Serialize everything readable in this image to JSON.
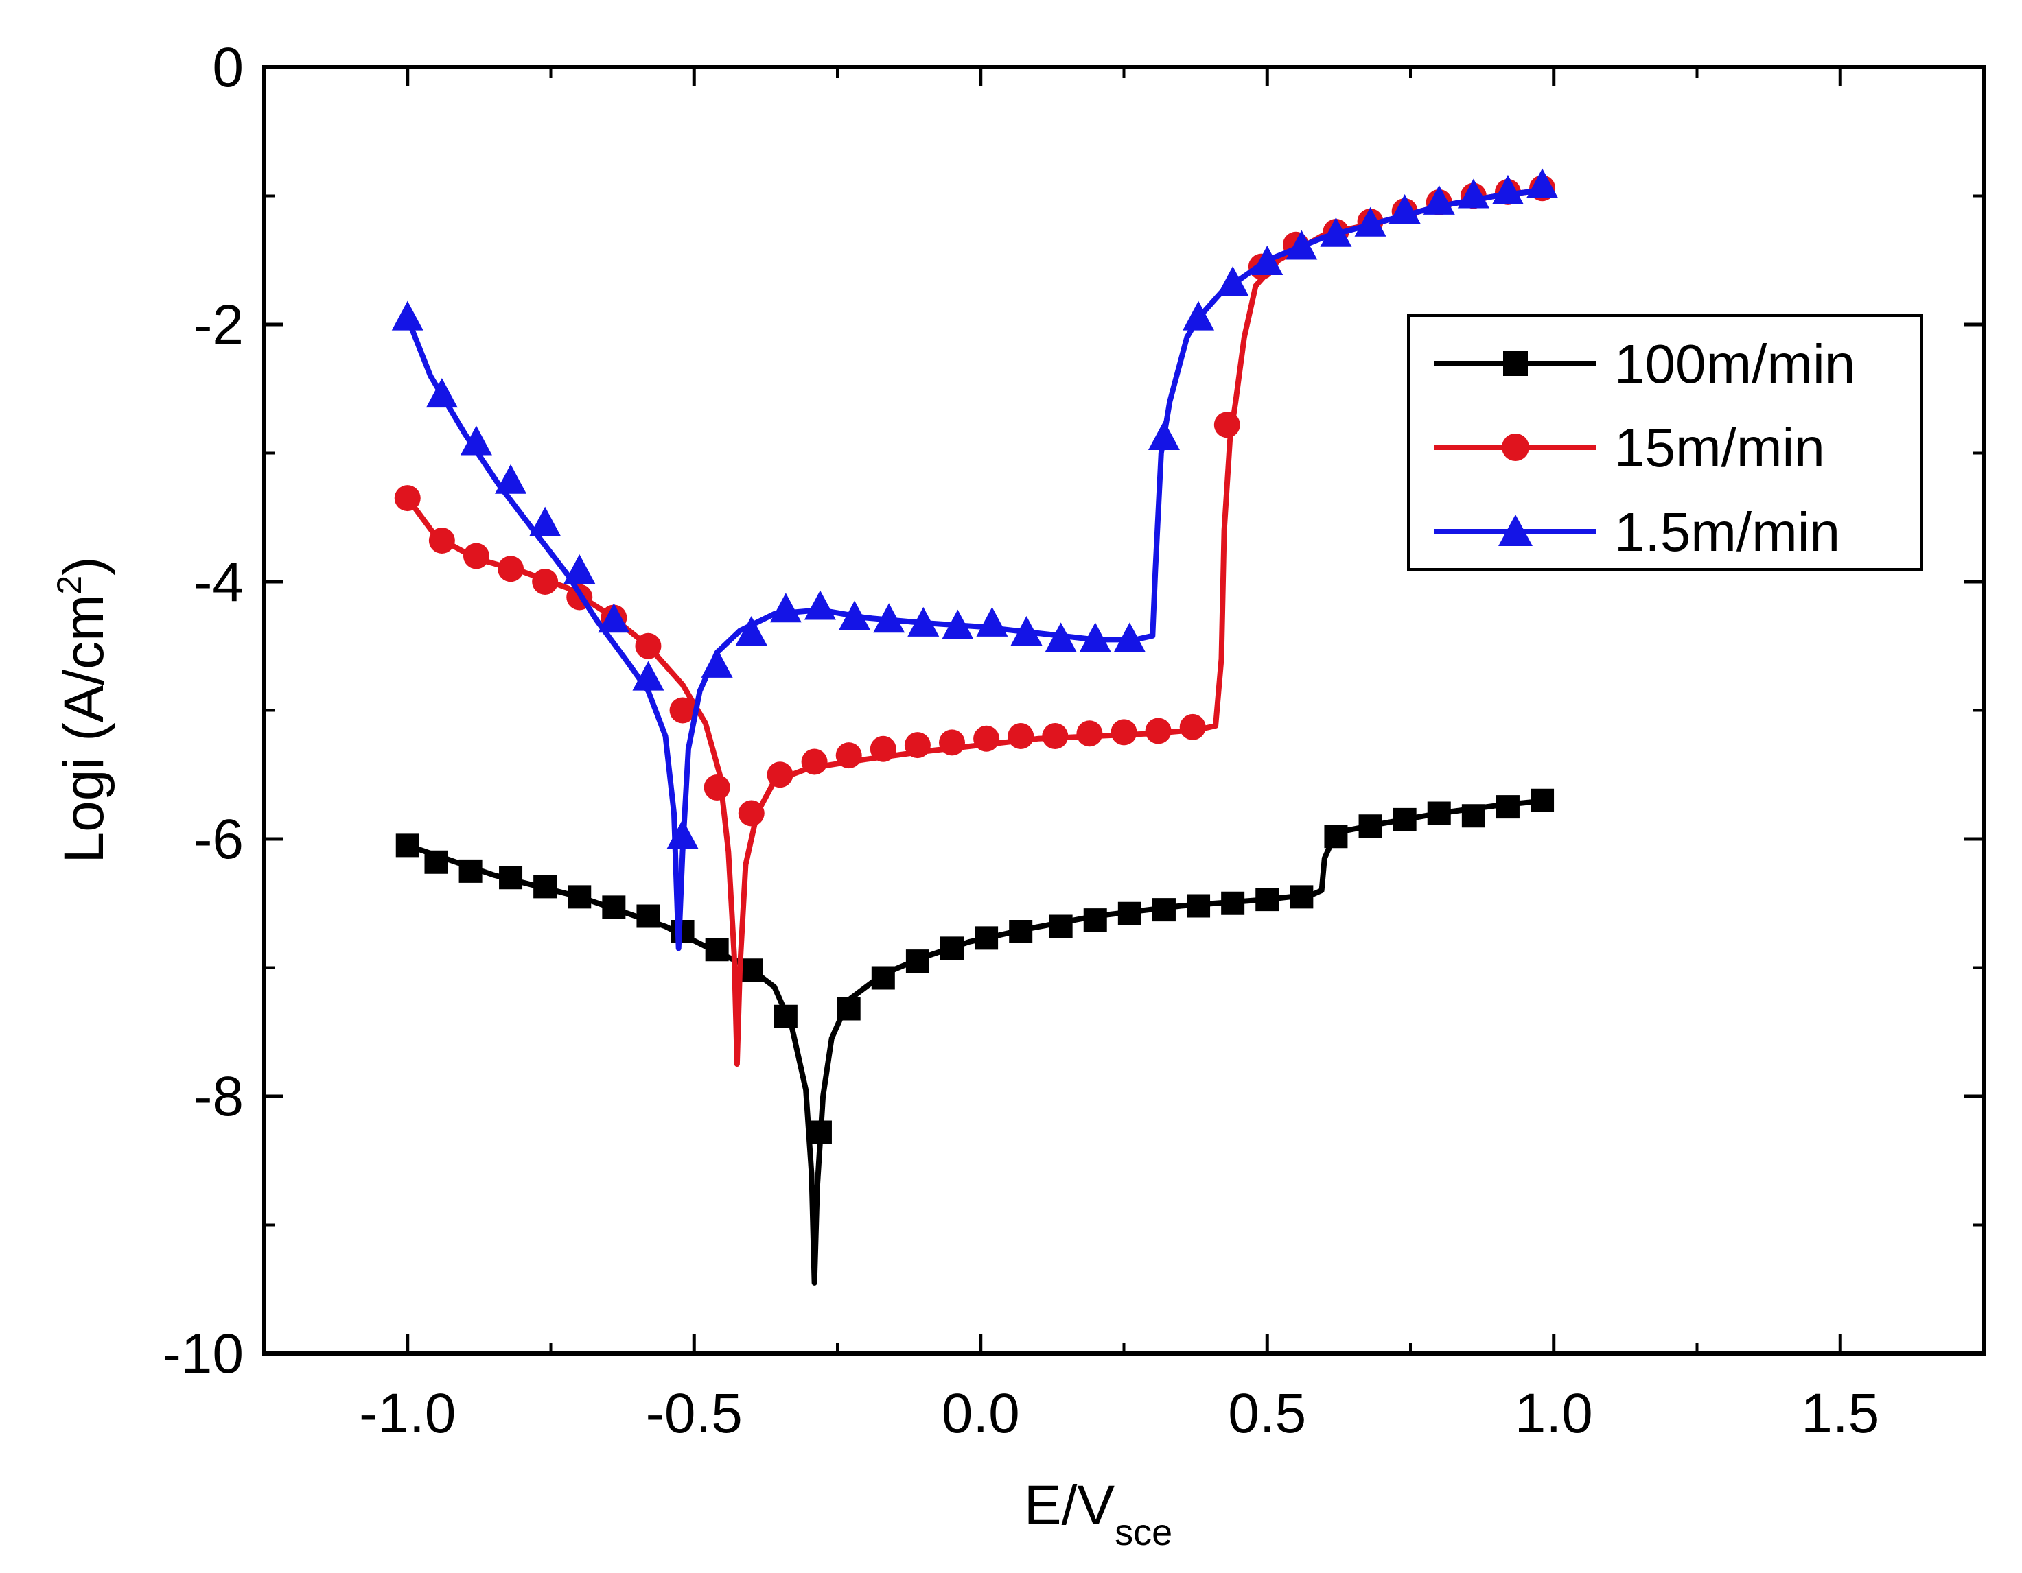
{
  "chart_data": {
    "type": "line",
    "xlabel_main": "E/V",
    "xlabel_sub": "sce",
    "ylabel_main": "Logi (A/cm",
    "ylabel_sup": "2",
    "ylabel_end": ")",
    "xlim": [
      -1.25,
      1.75
    ],
    "ylim": [
      -10,
      0
    ],
    "x_ticks": [
      -1.0,
      -0.5,
      0.0,
      0.5,
      1.0,
      1.5
    ],
    "x_tick_labels": [
      "-1.0",
      "-0.5",
      "0.0",
      "0.5",
      "1.0",
      "1.5"
    ],
    "y_ticks": [
      0,
      -2,
      -4,
      -6,
      -8,
      -10
    ],
    "y_tick_labels": [
      "0",
      "-2",
      "-4",
      "-6",
      "-8",
      "-10"
    ],
    "legend_position": "top-right",
    "series": [
      {
        "name": "100m/min",
        "color": "#000000",
        "marker": "square",
        "line": [
          [
            -1.0,
            -6.05
          ],
          [
            -0.85,
            -6.28
          ],
          [
            -0.7,
            -6.45
          ],
          [
            -0.55,
            -6.68
          ],
          [
            -0.46,
            -6.88
          ],
          [
            -0.41,
            -6.98
          ],
          [
            -0.36,
            -7.15
          ],
          [
            -0.33,
            -7.45
          ],
          [
            -0.305,
            -7.95
          ],
          [
            -0.295,
            -8.6
          ],
          [
            -0.29,
            -9.45
          ],
          [
            -0.285,
            -8.7
          ],
          [
            -0.275,
            -8.0
          ],
          [
            -0.26,
            -7.55
          ],
          [
            -0.23,
            -7.25
          ],
          [
            -0.17,
            -7.05
          ],
          [
            -0.1,
            -6.92
          ],
          [
            -0.02,
            -6.8
          ],
          [
            0.08,
            -6.7
          ],
          [
            0.2,
            -6.6
          ],
          [
            0.35,
            -6.52
          ],
          [
            0.5,
            -6.47
          ],
          [
            0.58,
            -6.43
          ],
          [
            0.595,
            -6.4
          ],
          [
            0.6,
            -6.15
          ],
          [
            0.62,
            -5.95
          ],
          [
            0.7,
            -5.88
          ],
          [
            0.8,
            -5.8
          ],
          [
            0.9,
            -5.74
          ],
          [
            0.99,
            -5.7
          ]
        ],
        "markers": [
          [
            -1.0,
            -6.05
          ],
          [
            -0.95,
            -6.18
          ],
          [
            -0.89,
            -6.25
          ],
          [
            -0.82,
            -6.3
          ],
          [
            -0.76,
            -6.37
          ],
          [
            -0.7,
            -6.45
          ],
          [
            -0.64,
            -6.53
          ],
          [
            -0.58,
            -6.6
          ],
          [
            -0.52,
            -6.72
          ],
          [
            -0.46,
            -6.86
          ],
          [
            -0.4,
            -7.02
          ],
          [
            -0.34,
            -7.38
          ],
          [
            -0.28,
            -8.28
          ],
          [
            -0.23,
            -7.32
          ],
          [
            -0.17,
            -7.08
          ],
          [
            -0.11,
            -6.95
          ],
          [
            -0.05,
            -6.85
          ],
          [
            0.01,
            -6.77
          ],
          [
            0.07,
            -6.72
          ],
          [
            0.14,
            -6.68
          ],
          [
            0.2,
            -6.63
          ],
          [
            0.26,
            -6.58
          ],
          [
            0.32,
            -6.55
          ],
          [
            0.38,
            -6.52
          ],
          [
            0.44,
            -6.5
          ],
          [
            0.5,
            -6.47
          ],
          [
            0.56,
            -6.45
          ],
          [
            0.62,
            -5.98
          ],
          [
            0.68,
            -5.9
          ],
          [
            0.74,
            -5.85
          ],
          [
            0.8,
            -5.8
          ],
          [
            0.86,
            -5.82
          ],
          [
            0.92,
            -5.75
          ],
          [
            0.98,
            -5.7
          ]
        ]
      },
      {
        "name": "15m/min",
        "color": "#e0141e",
        "marker": "circle",
        "line": [
          [
            -1.0,
            -3.35
          ],
          [
            -0.95,
            -3.65
          ],
          [
            -0.88,
            -3.82
          ],
          [
            -0.8,
            -3.92
          ],
          [
            -0.72,
            -4.05
          ],
          [
            -0.65,
            -4.25
          ],
          [
            -0.58,
            -4.5
          ],
          [
            -0.52,
            -4.8
          ],
          [
            -0.48,
            -5.1
          ],
          [
            -0.455,
            -5.5
          ],
          [
            -0.44,
            -6.1
          ],
          [
            -0.43,
            -6.9
          ],
          [
            -0.425,
            -7.75
          ],
          [
            -0.42,
            -7.0
          ],
          [
            -0.41,
            -6.2
          ],
          [
            -0.39,
            -5.8
          ],
          [
            -0.36,
            -5.55
          ],
          [
            -0.3,
            -5.45
          ],
          [
            -0.2,
            -5.38
          ],
          [
            -0.1,
            -5.32
          ],
          [
            0.0,
            -5.27
          ],
          [
            0.1,
            -5.22
          ],
          [
            0.2,
            -5.2
          ],
          [
            0.3,
            -5.18
          ],
          [
            0.38,
            -5.15
          ],
          [
            0.41,
            -5.12
          ],
          [
            0.42,
            -4.6
          ],
          [
            0.425,
            -3.6
          ],
          [
            0.435,
            -2.9
          ],
          [
            0.445,
            -2.6
          ],
          [
            0.46,
            -2.1
          ],
          [
            0.48,
            -1.7
          ],
          [
            0.52,
            -1.5
          ],
          [
            0.6,
            -1.3
          ],
          [
            0.7,
            -1.2
          ],
          [
            0.8,
            -1.08
          ],
          [
            0.9,
            -1.0
          ],
          [
            0.99,
            -0.95
          ]
        ],
        "markers": [
          [
            -1.0,
            -3.35
          ],
          [
            -0.94,
            -3.68
          ],
          [
            -0.88,
            -3.8
          ],
          [
            -0.82,
            -3.9
          ],
          [
            -0.76,
            -4.0
          ],
          [
            -0.7,
            -4.12
          ],
          [
            -0.64,
            -4.28
          ],
          [
            -0.58,
            -4.5
          ],
          [
            -0.52,
            -5.0
          ],
          [
            -0.46,
            -5.6
          ],
          [
            -0.4,
            -5.8
          ],
          [
            -0.35,
            -5.5
          ],
          [
            -0.29,
            -5.4
          ],
          [
            -0.23,
            -5.35
          ],
          [
            -0.17,
            -5.3
          ],
          [
            -0.11,
            -5.27
          ],
          [
            -0.05,
            -5.25
          ],
          [
            0.01,
            -5.22
          ],
          [
            0.07,
            -5.2
          ],
          [
            0.13,
            -5.2
          ],
          [
            0.19,
            -5.18
          ],
          [
            0.25,
            -5.17
          ],
          [
            0.31,
            -5.16
          ],
          [
            0.37,
            -5.13
          ],
          [
            0.43,
            -2.78
          ],
          [
            0.49,
            -1.55
          ],
          [
            0.55,
            -1.38
          ],
          [
            0.62,
            -1.28
          ],
          [
            0.68,
            -1.2
          ],
          [
            0.74,
            -1.12
          ],
          [
            0.8,
            -1.05
          ],
          [
            0.86,
            -1.0
          ],
          [
            0.92,
            -0.97
          ],
          [
            0.98,
            -0.94
          ]
        ]
      },
      {
        "name": "1.5m/min",
        "color": "#1414e6",
        "marker": "triangle",
        "line": [
          [
            -1.0,
            -1.95
          ],
          [
            -0.96,
            -2.4
          ],
          [
            -0.9,
            -2.85
          ],
          [
            -0.84,
            -3.25
          ],
          [
            -0.78,
            -3.6
          ],
          [
            -0.72,
            -3.95
          ],
          [
            -0.67,
            -4.3
          ],
          [
            -0.62,
            -4.6
          ],
          [
            -0.58,
            -4.85
          ],
          [
            -0.55,
            -5.2
          ],
          [
            -0.535,
            -5.8
          ],
          [
            -0.527,
            -6.85
          ],
          [
            -0.52,
            -6.1
          ],
          [
            -0.51,
            -5.3
          ],
          [
            -0.49,
            -4.85
          ],
          [
            -0.46,
            -4.55
          ],
          [
            -0.42,
            -4.38
          ],
          [
            -0.36,
            -4.25
          ],
          [
            -0.28,
            -4.22
          ],
          [
            -0.2,
            -4.28
          ],
          [
            -0.1,
            -4.32
          ],
          [
            0.0,
            -4.35
          ],
          [
            0.1,
            -4.4
          ],
          [
            0.2,
            -4.45
          ],
          [
            0.27,
            -4.45
          ],
          [
            0.3,
            -4.42
          ],
          [
            0.305,
            -3.9
          ],
          [
            0.315,
            -3.0
          ],
          [
            0.33,
            -2.6
          ],
          [
            0.36,
            -2.1
          ],
          [
            0.38,
            -1.95
          ],
          [
            0.42,
            -1.75
          ],
          [
            0.5,
            -1.5
          ],
          [
            0.6,
            -1.32
          ],
          [
            0.7,
            -1.2
          ],
          [
            0.8,
            -1.08
          ],
          [
            0.9,
            -1.0
          ],
          [
            0.99,
            -0.95
          ]
        ],
        "markers": [
          [
            -1.0,
            -1.95
          ],
          [
            -0.94,
            -2.55
          ],
          [
            -0.88,
            -2.92
          ],
          [
            -0.82,
            -3.22
          ],
          [
            -0.76,
            -3.55
          ],
          [
            -0.7,
            -3.92
          ],
          [
            -0.64,
            -4.3
          ],
          [
            -0.58,
            -4.75
          ],
          [
            -0.52,
            -5.98
          ],
          [
            -0.46,
            -4.65
          ],
          [
            -0.4,
            -4.4
          ],
          [
            -0.34,
            -4.22
          ],
          [
            -0.28,
            -4.2
          ],
          [
            -0.22,
            -4.28
          ],
          [
            -0.16,
            -4.3
          ],
          [
            -0.1,
            -4.33
          ],
          [
            -0.04,
            -4.35
          ],
          [
            0.02,
            -4.33
          ],
          [
            0.08,
            -4.4
          ],
          [
            0.14,
            -4.45
          ],
          [
            0.2,
            -4.45
          ],
          [
            0.26,
            -4.45
          ],
          [
            0.32,
            -2.88
          ],
          [
            0.38,
            -1.95
          ],
          [
            0.44,
            -1.68
          ],
          [
            0.5,
            -1.52
          ],
          [
            0.56,
            -1.4
          ],
          [
            0.62,
            -1.3
          ],
          [
            0.68,
            -1.22
          ],
          [
            0.74,
            -1.12
          ],
          [
            0.8,
            -1.05
          ],
          [
            0.86,
            -1.0
          ],
          [
            0.92,
            -0.97
          ],
          [
            0.98,
            -0.92
          ]
        ]
      }
    ]
  }
}
